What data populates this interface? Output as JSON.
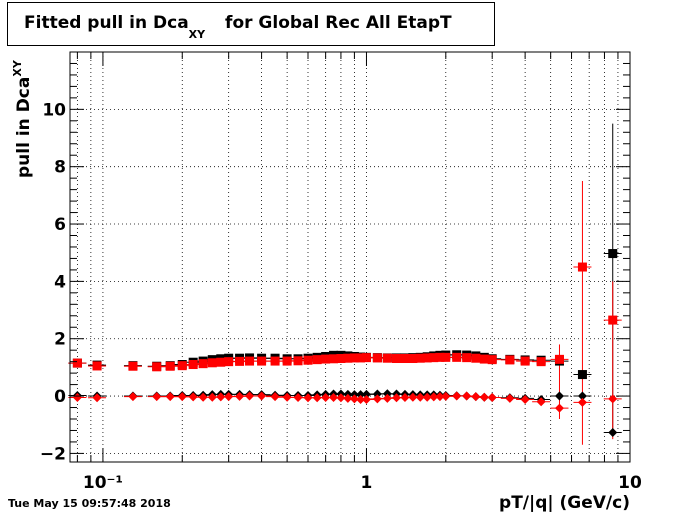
{
  "chart_data": {
    "type": "scatter",
    "title_main": "Fitted pull in Dca",
    "title_sub": "XY",
    "title_rest": " for Global Rec All EtapT",
    "xlabel": "pT/|q| (GeV/c)",
    "ylabel_main": "pull in Dca",
    "ylabel_sub": "XY",
    "xscale": "log",
    "xlim": [
      0.075,
      10
    ],
    "ylim": [
      -2.3,
      12
    ],
    "grid": true,
    "yticks": [
      -2,
      0,
      2,
      4,
      6,
      8,
      10
    ],
    "ytick_labels": [
      "−2",
      "0",
      "2",
      "4",
      "6",
      "8",
      "10"
    ],
    "xtick_major": [
      0.1,
      1,
      10
    ],
    "xtick_labels": [
      "10⁻¹",
      "1",
      "10"
    ],
    "series": [
      {
        "marker": "square",
        "color": "#000000",
        "points": [
          [
            0.08,
            1.15
          ],
          [
            0.095,
            1.08
          ],
          [
            0.13,
            1.06
          ],
          [
            0.16,
            1.04
          ],
          [
            0.18,
            1.06
          ],
          [
            0.2,
            1.1
          ],
          [
            0.22,
            1.18
          ],
          [
            0.24,
            1.22
          ],
          [
            0.26,
            1.27
          ],
          [
            0.28,
            1.3
          ],
          [
            0.3,
            1.32
          ],
          [
            0.33,
            1.32
          ],
          [
            0.36,
            1.33
          ],
          [
            0.4,
            1.32
          ],
          [
            0.45,
            1.32
          ],
          [
            0.5,
            1.3
          ],
          [
            0.55,
            1.3
          ],
          [
            0.6,
            1.32
          ],
          [
            0.65,
            1.35
          ],
          [
            0.7,
            1.38
          ],
          [
            0.75,
            1.42
          ],
          [
            0.8,
            1.42
          ],
          [
            0.85,
            1.4
          ],
          [
            0.9,
            1.38
          ],
          [
            0.95,
            1.36
          ],
          [
            1.0,
            1.35
          ],
          [
            1.1,
            1.34
          ],
          [
            1.2,
            1.33
          ],
          [
            1.3,
            1.33
          ],
          [
            1.4,
            1.33
          ],
          [
            1.5,
            1.34
          ],
          [
            1.6,
            1.35
          ],
          [
            1.7,
            1.37
          ],
          [
            1.8,
            1.4
          ],
          [
            1.9,
            1.42
          ],
          [
            2.0,
            1.43
          ],
          [
            2.2,
            1.44
          ],
          [
            2.4,
            1.43
          ],
          [
            2.6,
            1.4
          ],
          [
            2.8,
            1.35
          ],
          [
            3.0,
            1.3
          ],
          [
            3.5,
            1.28
          ],
          [
            4.0,
            1.26
          ],
          [
            4.6,
            1.25
          ],
          [
            5.4,
            1.22
          ],
          [
            6.6,
            0.75
          ],
          [
            8.6,
            4.97
          ]
        ]
      },
      {
        "marker": "square",
        "color": "#ff0000",
        "points": [
          [
            0.08,
            1.15
          ],
          [
            0.095,
            1.05
          ],
          [
            0.13,
            1.04
          ],
          [
            0.16,
            1.02
          ],
          [
            0.18,
            1.04
          ],
          [
            0.2,
            1.06
          ],
          [
            0.22,
            1.1
          ],
          [
            0.24,
            1.13
          ],
          [
            0.26,
            1.16
          ],
          [
            0.28,
            1.18
          ],
          [
            0.3,
            1.2
          ],
          [
            0.33,
            1.21
          ],
          [
            0.36,
            1.22
          ],
          [
            0.4,
            1.22
          ],
          [
            0.45,
            1.22
          ],
          [
            0.5,
            1.22
          ],
          [
            0.55,
            1.23
          ],
          [
            0.6,
            1.25
          ],
          [
            0.65,
            1.27
          ],
          [
            0.7,
            1.29
          ],
          [
            0.75,
            1.3
          ],
          [
            0.8,
            1.31
          ],
          [
            0.85,
            1.32
          ],
          [
            0.9,
            1.33
          ],
          [
            0.95,
            1.33
          ],
          [
            1.0,
            1.34
          ],
          [
            1.1,
            1.33
          ],
          [
            1.2,
            1.32
          ],
          [
            1.3,
            1.31
          ],
          [
            1.4,
            1.31
          ],
          [
            1.5,
            1.31
          ],
          [
            1.6,
            1.32
          ],
          [
            1.7,
            1.33
          ],
          [
            1.8,
            1.34
          ],
          [
            1.9,
            1.35
          ],
          [
            2.0,
            1.35
          ],
          [
            2.2,
            1.35
          ],
          [
            2.4,
            1.34
          ],
          [
            2.6,
            1.32
          ],
          [
            2.8,
            1.29
          ],
          [
            3.0,
            1.27
          ],
          [
            3.5,
            1.26
          ],
          [
            4.0,
            1.22
          ],
          [
            4.6,
            1.2
          ],
          [
            5.4,
            1.28
          ],
          [
            6.6,
            4.5
          ],
          [
            8.6,
            2.65
          ]
        ]
      },
      {
        "marker": "diamond",
        "color": "#000000",
        "points": [
          [
            0.08,
            0.02
          ],
          [
            0.095,
            0.0
          ],
          [
            0.13,
            0.0
          ],
          [
            0.16,
            0.0
          ],
          [
            0.18,
            0.0
          ],
          [
            0.2,
            0.02
          ],
          [
            0.22,
            0.02
          ],
          [
            0.24,
            0.03
          ],
          [
            0.26,
            0.05
          ],
          [
            0.28,
            0.06
          ],
          [
            0.3,
            0.06
          ],
          [
            0.33,
            0.06
          ],
          [
            0.36,
            0.05
          ],
          [
            0.4,
            0.05
          ],
          [
            0.45,
            0.03
          ],
          [
            0.5,
            0.02
          ],
          [
            0.55,
            0.02
          ],
          [
            0.6,
            0.02
          ],
          [
            0.65,
            0.04
          ],
          [
            0.7,
            0.06
          ],
          [
            0.75,
            0.07
          ],
          [
            0.8,
            0.07
          ],
          [
            0.85,
            0.06
          ],
          [
            0.9,
            0.05
          ],
          [
            0.95,
            0.05
          ],
          [
            1.0,
            0.06
          ],
          [
            1.1,
            0.07
          ],
          [
            1.2,
            0.08
          ],
          [
            1.3,
            0.07
          ],
          [
            1.4,
            0.06
          ],
          [
            1.5,
            0.05
          ],
          [
            1.6,
            0.04
          ],
          [
            1.7,
            0.04
          ],
          [
            1.8,
            0.04
          ],
          [
            1.9,
            0.03
          ],
          [
            2.0,
            0.02
          ],
          [
            2.2,
            0.01
          ],
          [
            2.4,
            0.0
          ],
          [
            2.6,
            -0.02
          ],
          [
            2.8,
            -0.04
          ],
          [
            3.0,
            -0.05
          ],
          [
            3.5,
            -0.06
          ],
          [
            4.0,
            -0.08
          ],
          [
            4.6,
            -0.12
          ],
          [
            5.4,
            0.0
          ],
          [
            6.6,
            0.0
          ],
          [
            8.6,
            -1.27
          ]
        ]
      },
      {
        "marker": "diamond",
        "color": "#ff0000",
        "points": [
          [
            0.08,
            -0.05
          ],
          [
            0.095,
            -0.06
          ],
          [
            0.13,
            -0.02
          ],
          [
            0.16,
            -0.02
          ],
          [
            0.18,
            -0.02
          ],
          [
            0.2,
            -0.02
          ],
          [
            0.22,
            -0.03
          ],
          [
            0.24,
            -0.04
          ],
          [
            0.26,
            -0.04
          ],
          [
            0.28,
            -0.03
          ],
          [
            0.3,
            -0.02
          ],
          [
            0.33,
            -0.01
          ],
          [
            0.36,
            0.0
          ],
          [
            0.4,
            0.0
          ],
          [
            0.45,
            -0.02
          ],
          [
            0.5,
            -0.04
          ],
          [
            0.55,
            -0.05
          ],
          [
            0.6,
            -0.06
          ],
          [
            0.65,
            -0.06
          ],
          [
            0.7,
            -0.05
          ],
          [
            0.75,
            -0.05
          ],
          [
            0.8,
            -0.06
          ],
          [
            0.85,
            -0.08
          ],
          [
            0.9,
            -0.1
          ],
          [
            0.95,
            -0.12
          ],
          [
            1.0,
            -0.12
          ],
          [
            1.1,
            -0.1
          ],
          [
            1.2,
            -0.08
          ],
          [
            1.3,
            -0.06
          ],
          [
            1.4,
            -0.05
          ],
          [
            1.5,
            -0.04
          ],
          [
            1.6,
            -0.04
          ],
          [
            1.7,
            -0.04
          ],
          [
            1.8,
            -0.03
          ],
          [
            1.9,
            -0.02
          ],
          [
            2.0,
            -0.01
          ],
          [
            2.2,
            0.0
          ],
          [
            2.4,
            0.0
          ],
          [
            2.6,
            -0.02
          ],
          [
            2.8,
            -0.04
          ],
          [
            3.0,
            -0.05
          ],
          [
            3.5,
            -0.08
          ],
          [
            4.0,
            -0.12
          ],
          [
            4.6,
            -0.2
          ],
          [
            5.4,
            -0.42
          ],
          [
            6.6,
            -0.22
          ],
          [
            8.6,
            -0.1
          ]
        ]
      }
    ],
    "error_bars": [
      {
        "x": 6.6,
        "ylo": -1.7,
        "yhi": 7.5,
        "color": "#ff0000"
      },
      {
        "x": 8.6,
        "ylo": -1.27,
        "yhi": 9.5,
        "color": "#000000"
      },
      {
        "x": 5.4,
        "ylo": -0.8,
        "yhi": 1.8,
        "color": "#ff0000"
      },
      {
        "x": 8.6,
        "ylo": -1.5,
        "yhi": 4.0,
        "color": "#ff0000"
      }
    ]
  },
  "timestamp": "Tue May 15 09:57:48 2018"
}
